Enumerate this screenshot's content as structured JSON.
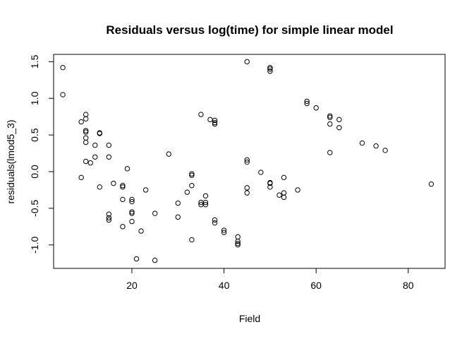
{
  "chart_data": {
    "type": "scatter",
    "title": "Residuals versus log(time) for simple linear model",
    "xlabel": "Field",
    "ylabel": "residuals(lmod5_3)",
    "xlim": [
      3,
      88
    ],
    "ylim": [
      -1.32,
      1.6
    ],
    "x_ticks": [
      20,
      40,
      60,
      80
    ],
    "y_ticks": [
      -1.0,
      -0.5,
      0.0,
      0.5,
      1.0,
      1.5
    ],
    "x_tick_labels": [
      "20",
      "40",
      "60",
      "80"
    ],
    "y_tick_labels": [
      "-1.0",
      "-0.5",
      "0.0",
      "0.5",
      "1.0",
      "1.5"
    ],
    "grid": false,
    "legend": "none",
    "marker": "open-circle",
    "points": [
      [
        5,
        1.42
      ],
      [
        5,
        1.05
      ],
      [
        9,
        0.68
      ],
      [
        9,
        -0.08
      ],
      [
        10,
        0.78
      ],
      [
        10,
        0.72
      ],
      [
        10,
        0.56
      ],
      [
        10,
        0.54
      ],
      [
        10,
        0.46
      ],
      [
        10,
        0.4
      ],
      [
        10,
        0.14
      ],
      [
        11,
        0.12
      ],
      [
        12,
        0.36
      ],
      [
        12,
        0.2
      ],
      [
        13,
        0.52
      ],
      [
        13,
        0.53
      ],
      [
        13,
        -0.21
      ],
      [
        15,
        0.36
      ],
      [
        15,
        0.2
      ],
      [
        15,
        -0.58
      ],
      [
        15,
        -0.63
      ],
      [
        15,
        -0.66
      ],
      [
        16,
        -0.16
      ],
      [
        18,
        -0.19
      ],
      [
        18,
        -0.21
      ],
      [
        18,
        -0.38
      ],
      [
        18,
        -0.75
      ],
      [
        19,
        0.04
      ],
      [
        20,
        -0.38
      ],
      [
        20,
        -0.41
      ],
      [
        20,
        -0.55
      ],
      [
        20,
        -0.57
      ],
      [
        20,
        -0.68
      ],
      [
        21,
        -1.19
      ],
      [
        22,
        -0.81
      ],
      [
        23,
        -0.25
      ],
      [
        25,
        -0.57
      ],
      [
        25,
        -1.21
      ],
      [
        28,
        0.24
      ],
      [
        30,
        -0.43
      ],
      [
        30,
        -0.62
      ],
      [
        32,
        -0.28
      ],
      [
        33,
        -0.03
      ],
      [
        33,
        -0.05
      ],
      [
        33,
        -0.19
      ],
      [
        33,
        -0.93
      ],
      [
        35,
        0.78
      ],
      [
        35,
        -0.42
      ],
      [
        35,
        -0.45
      ],
      [
        36,
        -0.33
      ],
      [
        36,
        -0.42
      ],
      [
        36,
        -0.45
      ],
      [
        37,
        0.71
      ],
      [
        38,
        0.7
      ],
      [
        38,
        0.67
      ],
      [
        38,
        0.65
      ],
      [
        38,
        -0.66
      ],
      [
        38,
        -0.7
      ],
      [
        40,
        -0.8
      ],
      [
        40,
        -0.83
      ],
      [
        43,
        -0.89
      ],
      [
        43,
        -0.95
      ],
      [
        43,
        -0.98
      ],
      [
        43,
        -1.0
      ],
      [
        45,
        1.5
      ],
      [
        45,
        0.16
      ],
      [
        45,
        0.13
      ],
      [
        45,
        -0.22
      ],
      [
        45,
        -0.29
      ],
      [
        48,
        -0.01
      ],
      [
        50,
        1.42
      ],
      [
        50,
        1.4
      ],
      [
        50,
        1.37
      ],
      [
        50,
        -0.15
      ],
      [
        50,
        -0.16
      ],
      [
        50,
        -0.21
      ],
      [
        52,
        -0.32
      ],
      [
        53,
        -0.08
      ],
      [
        53,
        -0.29
      ],
      [
        53,
        -0.35
      ],
      [
        56,
        -0.25
      ],
      [
        58,
        0.96
      ],
      [
        58,
        0.93
      ],
      [
        60,
        0.87
      ],
      [
        63,
        0.76
      ],
      [
        63,
        0.74
      ],
      [
        63,
        0.65
      ],
      [
        63,
        0.26
      ],
      [
        65,
        0.71
      ],
      [
        65,
        0.6
      ],
      [
        70,
        0.39
      ],
      [
        73,
        0.35
      ],
      [
        75,
        0.29
      ],
      [
        85,
        -0.17
      ]
    ]
  }
}
